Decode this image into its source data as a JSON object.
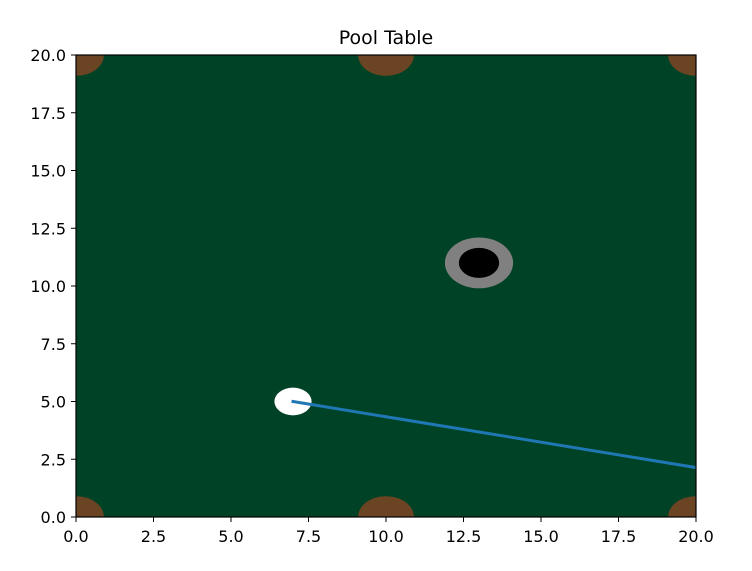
{
  "chart_data": {
    "type": "scatter",
    "title": "Pool Table",
    "xlabel": "",
    "ylabel": "",
    "xlim": [
      0,
      20
    ],
    "ylim": [
      0,
      20
    ],
    "x_ticks": [
      "0.0",
      "2.5",
      "5.0",
      "7.5",
      "10.0",
      "12.5",
      "15.0",
      "17.5",
      "20.0"
    ],
    "y_ticks": [
      "0.0",
      "2.5",
      "5.0",
      "7.5",
      "10.0",
      "12.5",
      "15.0",
      "17.5",
      "20.0"
    ],
    "grid": false,
    "table": {
      "felt_color": "#004225",
      "pocket_color": "#6b4423",
      "pocket_radius": 0.9,
      "pockets": [
        {
          "x": 0,
          "y": 0
        },
        {
          "x": 10,
          "y": 0
        },
        {
          "x": 20,
          "y": 0
        },
        {
          "x": 0,
          "y": 20
        },
        {
          "x": 10,
          "y": 20
        },
        {
          "x": 20,
          "y": 20
        }
      ]
    },
    "cue_ball": {
      "x": 7,
      "y": 5,
      "radius": 0.6,
      "color": "#ffffff"
    },
    "target_ring": {
      "x": 13,
      "y": 11,
      "radius": 1.1,
      "color": "#808080"
    },
    "target_ball": {
      "x": 13,
      "y": 11,
      "radius": 0.65,
      "color": "#000000"
    },
    "aim_line": {
      "color": "#1f77b4",
      "points": [
        {
          "x": 7,
          "y": 5
        },
        {
          "x": 20,
          "y": 2.14
        }
      ]
    }
  }
}
